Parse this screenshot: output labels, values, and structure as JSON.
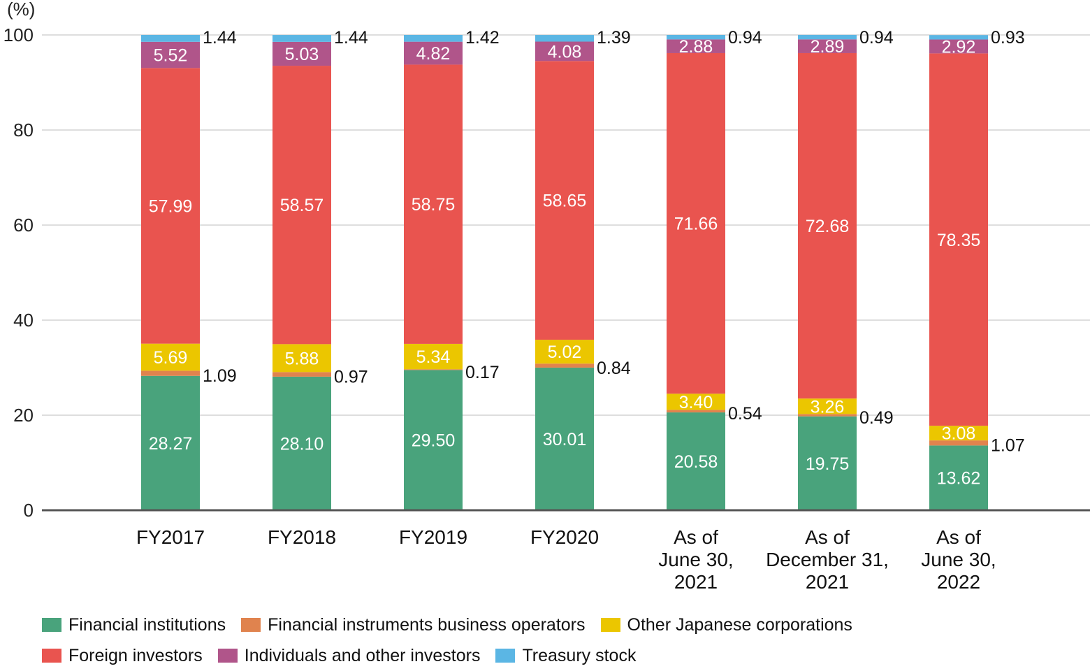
{
  "chart_data": {
    "type": "bar",
    "stacked": true,
    "unit_label": "(%)",
    "ylim": [
      0,
      100
    ],
    "yticks": [
      0,
      20,
      40,
      60,
      80,
      100
    ],
    "grid": true,
    "legend_position": "bottom",
    "categories": [
      [
        "FY2017"
      ],
      [
        "FY2018"
      ],
      [
        "FY2019"
      ],
      [
        "FY2020"
      ],
      [
        "As of",
        "June 30,",
        "2021"
      ],
      [
        "As of",
        "December 31,",
        "2021"
      ],
      [
        "As of",
        "June 30,",
        "2022"
      ]
    ],
    "series": [
      {
        "name": "Financial institutions",
        "color": "#49a37c",
        "values": [
          28.27,
          28.1,
          29.5,
          30.01,
          20.58,
          19.75,
          13.62
        ],
        "label_pos": "inside"
      },
      {
        "name": "Financial instruments business operators",
        "color": "#e0834e",
        "values": [
          1.09,
          0.97,
          0.17,
          0.84,
          0.54,
          0.49,
          1.07
        ],
        "label_pos": "outside"
      },
      {
        "name": "Other Japanese corporations",
        "color": "#ebc600",
        "values": [
          5.69,
          5.88,
          5.34,
          5.02,
          3.4,
          3.26,
          3.08
        ],
        "label_pos": "inside"
      },
      {
        "name": "Foreign investors",
        "color": "#e9544f",
        "values": [
          57.99,
          58.57,
          58.75,
          58.65,
          71.66,
          72.68,
          78.35
        ],
        "label_pos": "inside"
      },
      {
        "name": "Individuals and other investors",
        "color": "#b0558a",
        "values": [
          5.52,
          5.03,
          4.82,
          4.08,
          2.88,
          2.89,
          2.92
        ],
        "label_pos": "inside"
      },
      {
        "name": "Treasury stock",
        "color": "#5bb6e4",
        "values": [
          1.44,
          1.44,
          1.42,
          1.39,
          0.94,
          0.94,
          0.93
        ],
        "label_pos": "outside"
      }
    ],
    "value_labels": {
      "Financial institutions": [
        "28.27",
        "28.10",
        "29.50",
        "30.01",
        "20.58",
        "19.75",
        "13.62"
      ],
      "Financial instruments business operators": [
        "1.09",
        "0.97",
        "0.17",
        "0.84",
        "0.54",
        "0.49",
        "1.07"
      ],
      "Other Japanese corporations": [
        "5.69",
        "5.88",
        "5.34",
        "5.02",
        "3.40",
        "3.26",
        "3.08"
      ],
      "Foreign investors": [
        "57.99",
        "58.57",
        "58.75",
        "58.65",
        "71.66",
        "72.68",
        "78.35"
      ],
      "Individuals and other investors": [
        "5.52",
        "5.03",
        "4.82",
        "4.08",
        "2.88",
        "2.89",
        "2.92"
      ],
      "Treasury stock": [
        "1.44",
        "1.44",
        "1.42",
        "1.39",
        "0.94",
        "0.94",
        "0.93"
      ]
    }
  }
}
